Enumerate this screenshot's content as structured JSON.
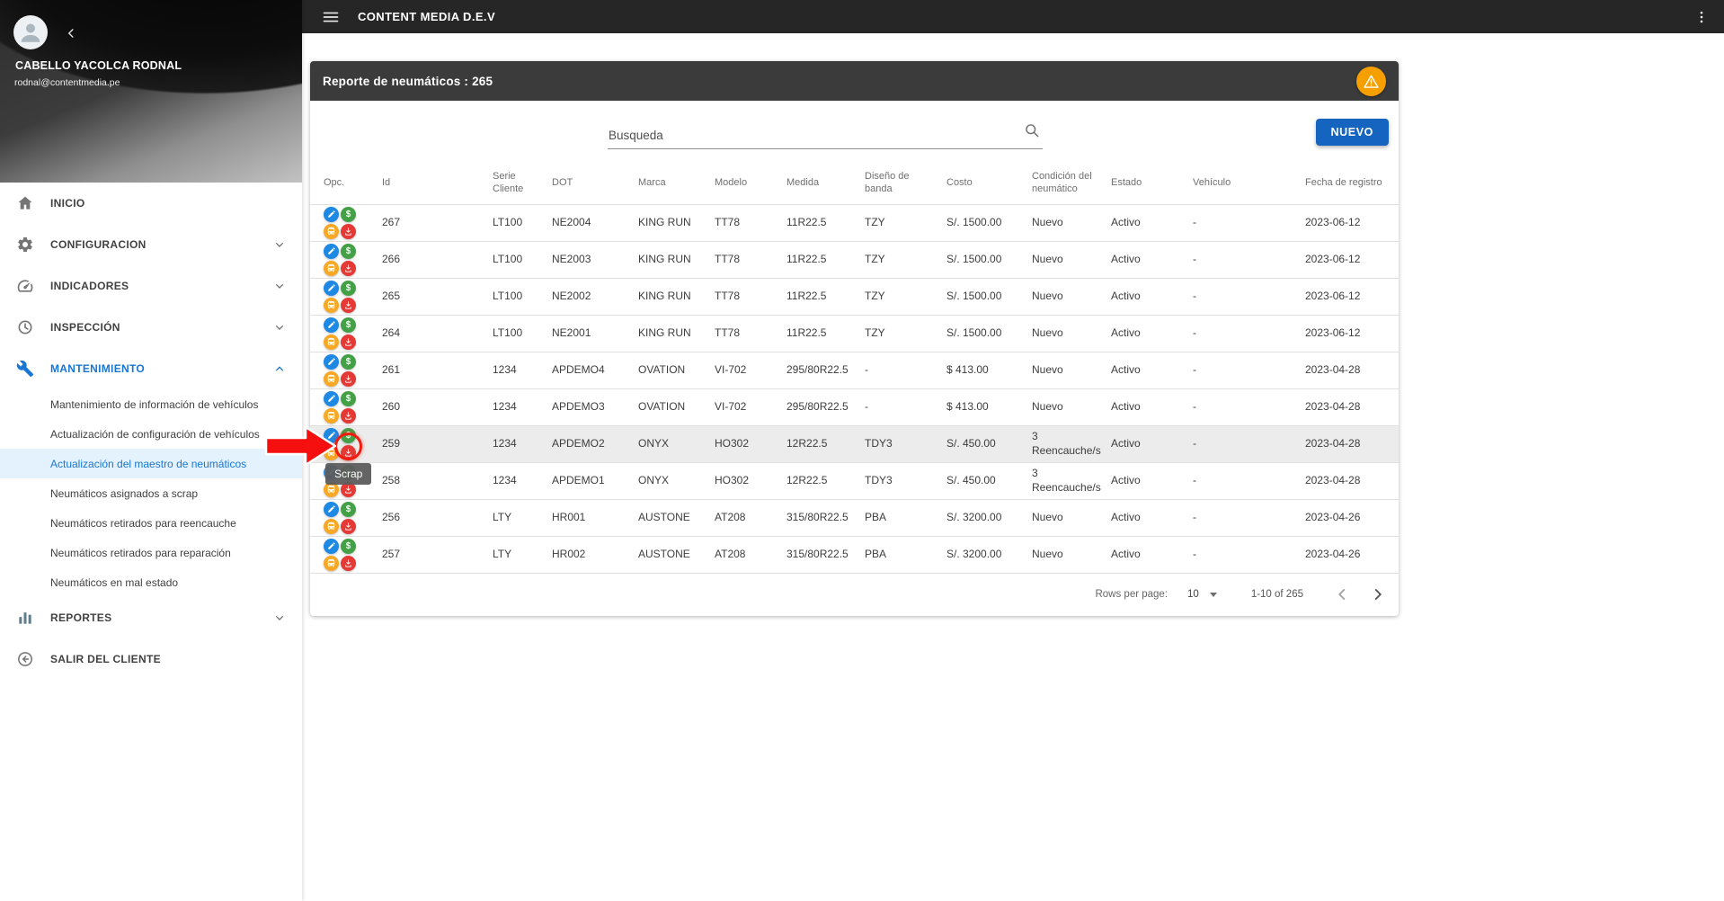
{
  "topbar": {
    "title": "CONTENT MEDIA D.E.V",
    "menu_icon": "menu-icon",
    "overflow_icon": "kebab-menu-icon"
  },
  "sidebar": {
    "user": {
      "name": "CABELLO YACOLCA RODNAL",
      "email": "rodnal@contentmedia.pe"
    },
    "items": [
      {
        "id": "inicio",
        "label": "INICIO",
        "icon": "home-icon",
        "expandable": false
      },
      {
        "id": "configuracion",
        "label": "CONFIGURACION",
        "icon": "gear-icon",
        "expandable": true,
        "expanded": false
      },
      {
        "id": "indicadores",
        "label": "INDICADORES",
        "icon": "gauge-icon",
        "expandable": true,
        "expanded": false
      },
      {
        "id": "inspeccion",
        "label": "INSPECCIÓN",
        "icon": "history-icon",
        "expandable": true,
        "expanded": false
      },
      {
        "id": "mantenimiento",
        "label": "MANTENIMIENTO",
        "icon": "wrench-icon",
        "expandable": true,
        "expanded": true,
        "active": true,
        "children": [
          {
            "label": "Mantenimiento de información de vehículos"
          },
          {
            "label": "Actualización de configuración de vehículos"
          },
          {
            "label": "Actualización del maestro de neumáticos",
            "selected": true
          },
          {
            "label": "Neumáticos asignados a scrap"
          },
          {
            "label": "Neumáticos retirados para reencauche"
          },
          {
            "label": "Neumáticos retirados para reparación"
          },
          {
            "label": "Neumáticos en mal estado"
          }
        ]
      },
      {
        "id": "reportes",
        "label": "REPORTES",
        "icon": "bar-chart-icon",
        "expandable": true,
        "expanded": false
      },
      {
        "id": "salir-del-cliente",
        "label": "SALIR DEL CLIENTE",
        "icon": "exit-icon",
        "expandable": false
      }
    ]
  },
  "report": {
    "title": "Reporte de neumáticos : 265",
    "header_icon": "warning-icon",
    "search": {
      "placeholder": "Busqueda",
      "icon": "search-icon"
    },
    "new_button_label": "NUEVO",
    "table": {
      "columns": [
        "Opc.",
        "Id",
        "Serie\nCliente",
        "DOT",
        "Marca",
        "Modelo",
        "Medida",
        "Diseño de\nbanda",
        "Costo",
        "Condición del\nneumático",
        "Estado",
        "Vehículo",
        "Fecha de registro"
      ],
      "actions": [
        "edit",
        "dollar",
        "vehicle",
        "scrap"
      ],
      "action_colors": {
        "edit": "#1e88e5",
        "dollar": "#43a047",
        "vehicle": "#f9a825",
        "scrap": "#e53935"
      },
      "highlighted_row_id": "259",
      "rows": [
        {
          "id": "267",
          "serie_cliente": "LT100",
          "dot": "NE2004",
          "marca": "KING RUN",
          "modelo": "TT78",
          "medida": "11R22.5",
          "diseno_banda": "TZY",
          "costo": "S/. 1500.00",
          "condicion": "Nuevo",
          "estado": "Activo",
          "vehiculo": "-",
          "fecha_registro": "2023-06-12"
        },
        {
          "id": "266",
          "serie_cliente": "LT100",
          "dot": "NE2003",
          "marca": "KING RUN",
          "modelo": "TT78",
          "medida": "11R22.5",
          "diseno_banda": "TZY",
          "costo": "S/. 1500.00",
          "condicion": "Nuevo",
          "estado": "Activo",
          "vehiculo": "-",
          "fecha_registro": "2023-06-12"
        },
        {
          "id": "265",
          "serie_cliente": "LT100",
          "dot": "NE2002",
          "marca": "KING RUN",
          "modelo": "TT78",
          "medida": "11R22.5",
          "diseno_banda": "TZY",
          "costo": "S/. 1500.00",
          "condicion": "Nuevo",
          "estado": "Activo",
          "vehiculo": "-",
          "fecha_registro": "2023-06-12"
        },
        {
          "id": "264",
          "serie_cliente": "LT100",
          "dot": "NE2001",
          "marca": "KING RUN",
          "modelo": "TT78",
          "medida": "11R22.5",
          "diseno_banda": "TZY",
          "costo": "S/. 1500.00",
          "condicion": "Nuevo",
          "estado": "Activo",
          "vehiculo": "-",
          "fecha_registro": "2023-06-12"
        },
        {
          "id": "261",
          "serie_cliente": "1234",
          "dot": "APDEMO4",
          "marca": "OVATION",
          "modelo": "VI-702",
          "medida": "295/80R22.5",
          "diseno_banda": "-",
          "costo": "$ 413.00",
          "condicion": "Nuevo",
          "estado": "Activo",
          "vehiculo": "-",
          "fecha_registro": "2023-04-28"
        },
        {
          "id": "260",
          "serie_cliente": "1234",
          "dot": "APDEMO3",
          "marca": "OVATION",
          "modelo": "VI-702",
          "medida": "295/80R22.5",
          "diseno_banda": "-",
          "costo": "$ 413.00",
          "condicion": "Nuevo",
          "estado": "Activo",
          "vehiculo": "-",
          "fecha_registro": "2023-04-28"
        },
        {
          "id": "259",
          "serie_cliente": "1234",
          "dot": "APDEMO2",
          "marca": "ONYX",
          "modelo": "HO302",
          "medida": "12R22.5",
          "diseno_banda": "TDY3",
          "costo": "S/. 450.00",
          "condicion": "3 Reencauche/s",
          "estado": "Activo",
          "vehiculo": "-",
          "fecha_registro": "2023-04-28"
        },
        {
          "id": "258",
          "serie_cliente": "1234",
          "dot": "APDEMO1",
          "marca": "ONYX",
          "modelo": "HO302",
          "medida": "12R22.5",
          "diseno_banda": "TDY3",
          "costo": "S/. 450.00",
          "condicion": "3 Reencauche/s",
          "estado": "Activo",
          "vehiculo": "-",
          "fecha_registro": "2023-04-28"
        },
        {
          "id": "256",
          "serie_cliente": "LTY",
          "dot": "HR001",
          "marca": "AUSTONE",
          "modelo": "AT208",
          "medida": "315/80R22.5",
          "diseno_banda": "PBA",
          "costo": "S/. 3200.00",
          "condicion": "Nuevo",
          "estado": "Activo",
          "vehiculo": "-",
          "fecha_registro": "2023-04-26"
        },
        {
          "id": "257",
          "serie_cliente": "LTY",
          "dot": "HR002",
          "marca": "AUSTONE",
          "modelo": "AT208",
          "medida": "315/80R22.5",
          "diseno_banda": "PBA",
          "costo": "S/. 3200.00",
          "condicion": "Nuevo",
          "estado": "Activo",
          "vehiculo": "-",
          "fecha_registro": "2023-04-26"
        }
      ]
    },
    "pagination": {
      "rows_per_page_label": "Rows per page:",
      "rows_per_page_value": "10",
      "range_label": "1-10 of 265"
    }
  },
  "annotation": {
    "tooltip_label": "Scrap",
    "arrow_color": "#f50f0f"
  },
  "colors": {
    "accent_blue": "#1976d2",
    "new_button_blue": "#1565c0",
    "warning_orange": "#f59f00",
    "selected_item_bg": "#e3f2fd",
    "topbar_dark": "#262626",
    "card_header_dark": "#3b3b3b",
    "highlight_row": "#ececec"
  }
}
